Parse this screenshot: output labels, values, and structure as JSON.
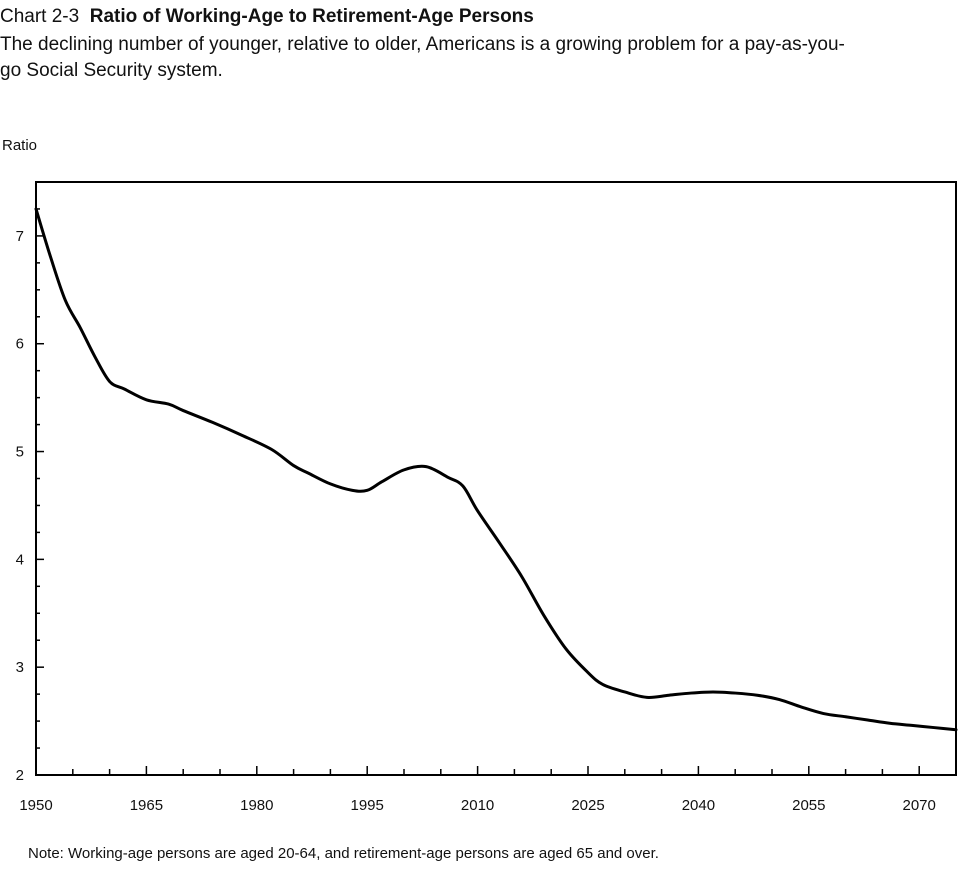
{
  "header": {
    "label": "Chart 2-3",
    "title": "Ratio of Working-Age to Retirement-Age Persons",
    "subtitle": "The declining number of younger, relative to older, Americans is a growing problem for a pay-as-you-go Social Security system."
  },
  "note": "Note: Working-age persons are aged 20-64, and retirement-age persons are aged 65 and over.",
  "chart_data": {
    "type": "line",
    "title": "Ratio of Working-Age to Retirement-Age Persons",
    "xlabel": "",
    "ylabel": "Ratio",
    "xlim": [
      1950,
      2075
    ],
    "ylim": [
      2,
      7.5
    ],
    "x_ticks": [
      1950,
      1965,
      1980,
      1995,
      2010,
      2025,
      2040,
      2055,
      2070
    ],
    "y_ticks": [
      2,
      3,
      4,
      5,
      6,
      7
    ],
    "grid": false,
    "legend": "none",
    "series": [
      {
        "color": "#000000",
        "x": [
          1950,
          1952,
          1954,
          1956,
          1958,
          1960,
          1962,
          1965,
          1968,
          1970,
          1974,
          1978,
          1982,
          1985,
          1987,
          1990,
          1993,
          1995,
          1997,
          2000,
          2003,
          2006,
          2008,
          2010,
          2013,
          2016,
          2019,
          2022,
          2025,
          2027,
          2030,
          2033,
          2036,
          2039,
          2042,
          2045,
          2048,
          2051,
          2054,
          2057,
          2060,
          2063,
          2066,
          2069,
          2072,
          2075
        ],
        "y": [
          7.25,
          6.8,
          6.4,
          6.15,
          5.88,
          5.65,
          5.58,
          5.48,
          5.44,
          5.38,
          5.27,
          5.15,
          5.02,
          4.87,
          4.8,
          4.7,
          4.64,
          4.64,
          4.72,
          4.83,
          4.86,
          4.76,
          4.68,
          4.45,
          4.15,
          3.84,
          3.48,
          3.17,
          2.95,
          2.84,
          2.77,
          2.72,
          2.74,
          2.76,
          2.77,
          2.76,
          2.74,
          2.7,
          2.63,
          2.57,
          2.54,
          2.51,
          2.48,
          2.46,
          2.44,
          2.42
        ]
      }
    ]
  }
}
